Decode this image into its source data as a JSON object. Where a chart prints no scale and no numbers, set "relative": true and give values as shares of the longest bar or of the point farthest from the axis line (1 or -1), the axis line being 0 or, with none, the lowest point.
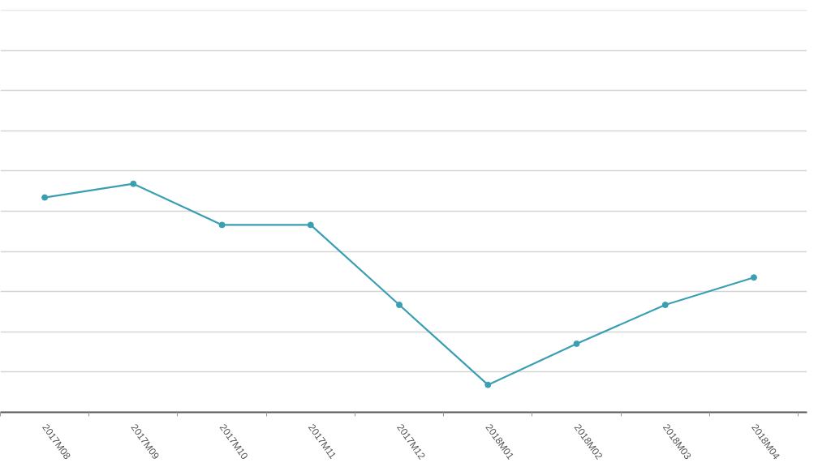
{
  "chart_data": {
    "type": "line",
    "relative": true,
    "categories": [
      "2017M08",
      "2017M09",
      "2017M10",
      "2017M11",
      "2017M12",
      "2018M01",
      "2018M02",
      "2018M03",
      "2018M04"
    ],
    "series": [
      {
        "color": "#3a9fb3",
        "values": [
          0.94,
          1,
          0.82,
          0.82,
          0.47,
          0.12,
          0.3,
          0.47,
          0.59
        ]
      }
    ],
    "grid": "y",
    "marker": "circle",
    "line_style": "solid"
  }
}
